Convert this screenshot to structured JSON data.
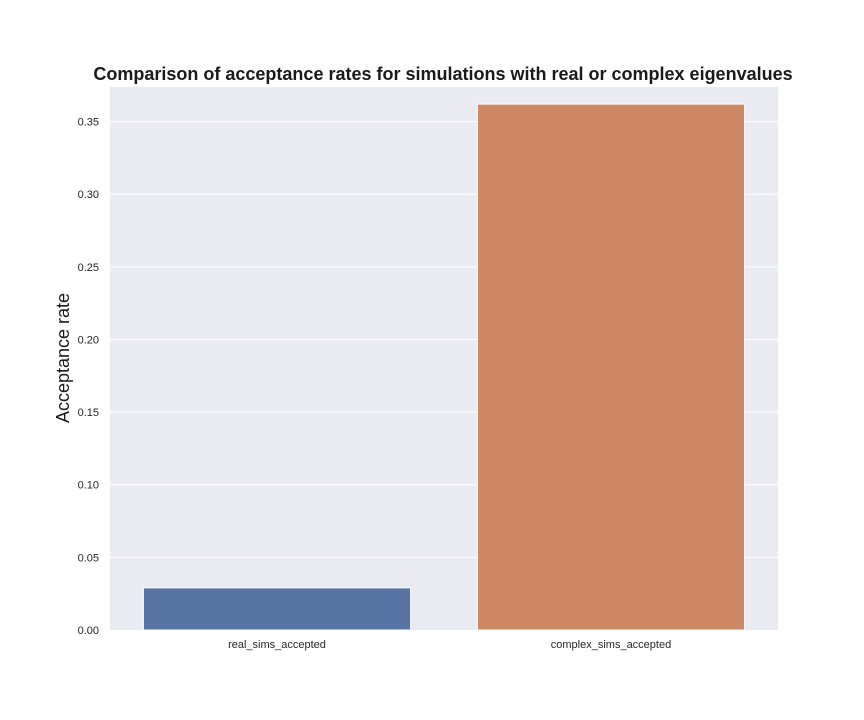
{
  "chart_data": {
    "type": "bar",
    "title": "Comparison of acceptance rates for simulations with real or complex eigenvalues",
    "xlabel": "",
    "ylabel": "Acceptance rate",
    "categories": [
      "real_sims_accepted",
      "complex_sims_accepted"
    ],
    "values": [
      0.029,
      0.362
    ],
    "colors": [
      "#5874a4",
      "#cc8963"
    ],
    "ylim": [
      0,
      0.3738
    ],
    "yticks": [
      0.0,
      0.05,
      0.1,
      0.15,
      0.2,
      0.25,
      0.3,
      0.35
    ],
    "ytick_labels": [
      "0.00",
      "0.05",
      "0.10",
      "0.15",
      "0.20",
      "0.25",
      "0.30",
      "0.35"
    ],
    "grid": true,
    "background": "#eaeaf2"
  }
}
